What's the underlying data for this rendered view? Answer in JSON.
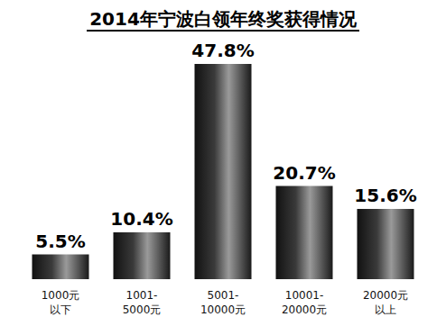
{
  "chart_data": {
    "type": "bar",
    "title": "2014年宁波白领年终奖获得情况",
    "categories": [
      "1000元\n以下",
      "1001-\n5000元",
      "5001-\n10000元",
      "10001-\n20000元",
      "20000元\n以上"
    ],
    "values": [
      5.5,
      10.4,
      47.8,
      20.7,
      15.6
    ],
    "value_labels": [
      "5.5%",
      "10.4%",
      "47.8%",
      "20.7%",
      "15.6%"
    ],
    "color": "#3a3a3a",
    "data_labels": true,
    "tick_labels": "x",
    "grid": false
  }
}
